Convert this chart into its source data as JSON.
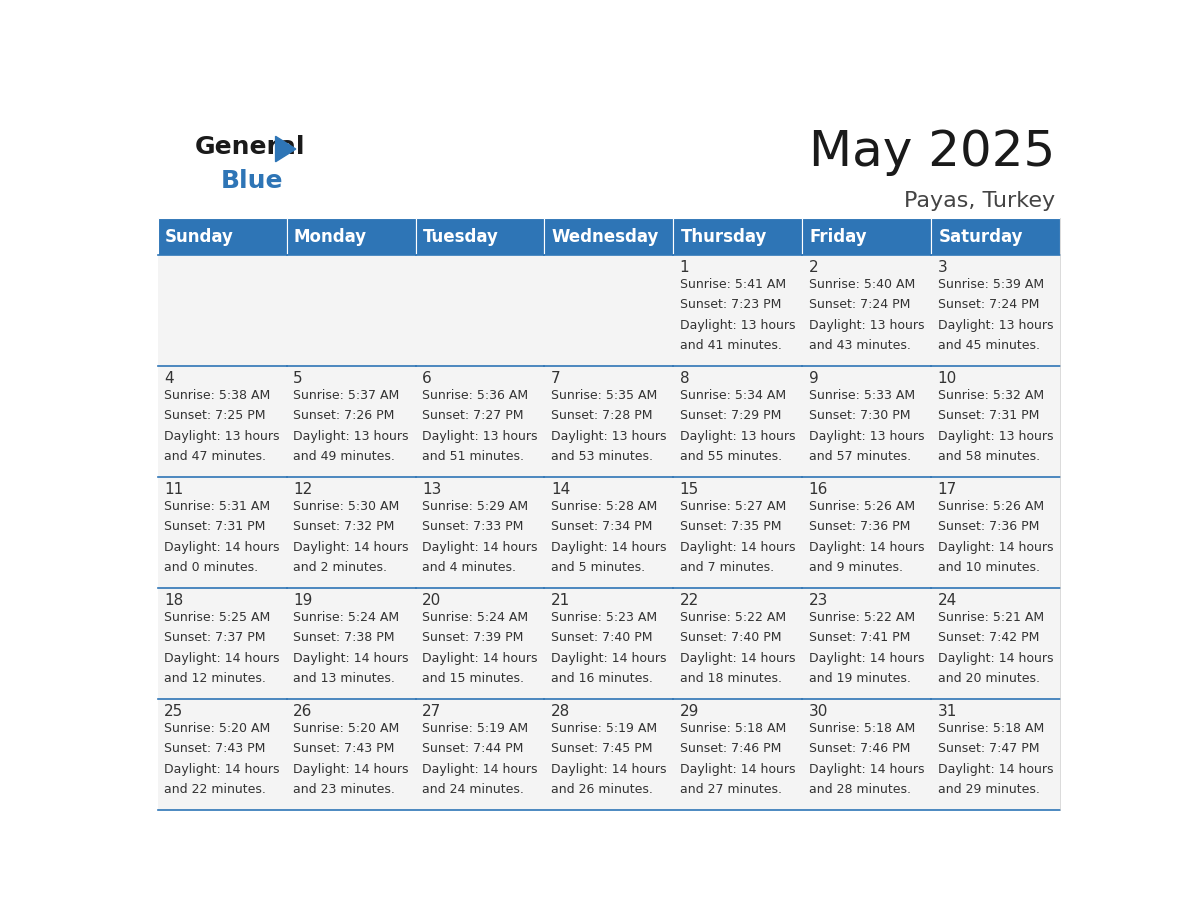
{
  "title": "May 2025",
  "subtitle": "Payas, Turkey",
  "header_color": "#2E75B6",
  "header_text_color": "#FFFFFF",
  "cell_bg_color": "#F2F2F2",
  "cell_text_color": "#333333",
  "day_num_color": "#333333",
  "border_color": "#2E75B6",
  "days_of_week": [
    "Sunday",
    "Monday",
    "Tuesday",
    "Wednesday",
    "Thursday",
    "Friday",
    "Saturday"
  ],
  "calendar_data": [
    [
      {
        "day": 0
      },
      {
        "day": 0
      },
      {
        "day": 0
      },
      {
        "day": 0
      },
      {
        "day": 1,
        "sunrise": "5:41 AM",
        "sunset": "7:23 PM",
        "daylight_h": "13 hours",
        "daylight_m": "41 minutes."
      },
      {
        "day": 2,
        "sunrise": "5:40 AM",
        "sunset": "7:24 PM",
        "daylight_h": "13 hours",
        "daylight_m": "43 minutes."
      },
      {
        "day": 3,
        "sunrise": "5:39 AM",
        "sunset": "7:24 PM",
        "daylight_h": "13 hours",
        "daylight_m": "45 minutes."
      }
    ],
    [
      {
        "day": 4,
        "sunrise": "5:38 AM",
        "sunset": "7:25 PM",
        "daylight_h": "13 hours",
        "daylight_m": "47 minutes."
      },
      {
        "day": 5,
        "sunrise": "5:37 AM",
        "sunset": "7:26 PM",
        "daylight_h": "13 hours",
        "daylight_m": "49 minutes."
      },
      {
        "day": 6,
        "sunrise": "5:36 AM",
        "sunset": "7:27 PM",
        "daylight_h": "13 hours",
        "daylight_m": "51 minutes."
      },
      {
        "day": 7,
        "sunrise": "5:35 AM",
        "sunset": "7:28 PM",
        "daylight_h": "13 hours",
        "daylight_m": "53 minutes."
      },
      {
        "day": 8,
        "sunrise": "5:34 AM",
        "sunset": "7:29 PM",
        "daylight_h": "13 hours",
        "daylight_m": "55 minutes."
      },
      {
        "day": 9,
        "sunrise": "5:33 AM",
        "sunset": "7:30 PM",
        "daylight_h": "13 hours",
        "daylight_m": "57 minutes."
      },
      {
        "day": 10,
        "sunrise": "5:32 AM",
        "sunset": "7:31 PM",
        "daylight_h": "13 hours",
        "daylight_m": "58 minutes."
      }
    ],
    [
      {
        "day": 11,
        "sunrise": "5:31 AM",
        "sunset": "7:31 PM",
        "daylight_h": "14 hours",
        "daylight_m": "0 minutes."
      },
      {
        "day": 12,
        "sunrise": "5:30 AM",
        "sunset": "7:32 PM",
        "daylight_h": "14 hours",
        "daylight_m": "2 minutes."
      },
      {
        "day": 13,
        "sunrise": "5:29 AM",
        "sunset": "7:33 PM",
        "daylight_h": "14 hours",
        "daylight_m": "4 minutes."
      },
      {
        "day": 14,
        "sunrise": "5:28 AM",
        "sunset": "7:34 PM",
        "daylight_h": "14 hours",
        "daylight_m": "5 minutes."
      },
      {
        "day": 15,
        "sunrise": "5:27 AM",
        "sunset": "7:35 PM",
        "daylight_h": "14 hours",
        "daylight_m": "7 minutes."
      },
      {
        "day": 16,
        "sunrise": "5:26 AM",
        "sunset": "7:36 PM",
        "daylight_h": "14 hours",
        "daylight_m": "9 minutes."
      },
      {
        "day": 17,
        "sunrise": "5:26 AM",
        "sunset": "7:36 PM",
        "daylight_h": "14 hours",
        "daylight_m": "10 minutes."
      }
    ],
    [
      {
        "day": 18,
        "sunrise": "5:25 AM",
        "sunset": "7:37 PM",
        "daylight_h": "14 hours",
        "daylight_m": "12 minutes."
      },
      {
        "day": 19,
        "sunrise": "5:24 AM",
        "sunset": "7:38 PM",
        "daylight_h": "14 hours",
        "daylight_m": "13 minutes."
      },
      {
        "day": 20,
        "sunrise": "5:24 AM",
        "sunset": "7:39 PM",
        "daylight_h": "14 hours",
        "daylight_m": "15 minutes."
      },
      {
        "day": 21,
        "sunrise": "5:23 AM",
        "sunset": "7:40 PM",
        "daylight_h": "14 hours",
        "daylight_m": "16 minutes."
      },
      {
        "day": 22,
        "sunrise": "5:22 AM",
        "sunset": "7:40 PM",
        "daylight_h": "14 hours",
        "daylight_m": "18 minutes."
      },
      {
        "day": 23,
        "sunrise": "5:22 AM",
        "sunset": "7:41 PM",
        "daylight_h": "14 hours",
        "daylight_m": "19 minutes."
      },
      {
        "day": 24,
        "sunrise": "5:21 AM",
        "sunset": "7:42 PM",
        "daylight_h": "14 hours",
        "daylight_m": "20 minutes."
      }
    ],
    [
      {
        "day": 25,
        "sunrise": "5:20 AM",
        "sunset": "7:43 PM",
        "daylight_h": "14 hours",
        "daylight_m": "22 minutes."
      },
      {
        "day": 26,
        "sunrise": "5:20 AM",
        "sunset": "7:43 PM",
        "daylight_h": "14 hours",
        "daylight_m": "23 minutes."
      },
      {
        "day": 27,
        "sunrise": "5:19 AM",
        "sunset": "7:44 PM",
        "daylight_h": "14 hours",
        "daylight_m": "24 minutes."
      },
      {
        "day": 28,
        "sunrise": "5:19 AM",
        "sunset": "7:45 PM",
        "daylight_h": "14 hours",
        "daylight_m": "26 minutes."
      },
      {
        "day": 29,
        "sunrise": "5:18 AM",
        "sunset": "7:46 PM",
        "daylight_h": "14 hours",
        "daylight_m": "27 minutes."
      },
      {
        "day": 30,
        "sunrise": "5:18 AM",
        "sunset": "7:46 PM",
        "daylight_h": "14 hours",
        "daylight_m": "28 minutes."
      },
      {
        "day": 31,
        "sunrise": "5:18 AM",
        "sunset": "7:47 PM",
        "daylight_h": "14 hours",
        "daylight_m": "29 minutes."
      }
    ]
  ],
  "title_fontsize": 36,
  "subtitle_fontsize": 16,
  "header_fontsize": 12,
  "day_num_fontsize": 11,
  "info_fontsize": 9
}
